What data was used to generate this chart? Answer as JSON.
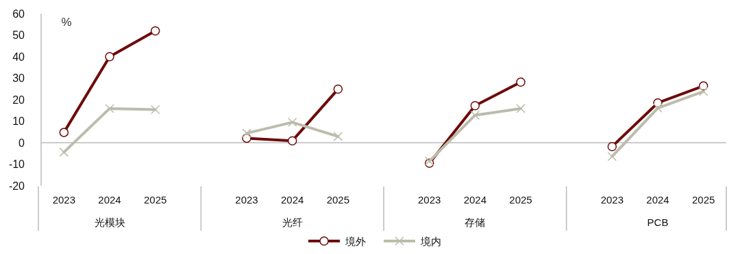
{
  "chart_data": {
    "type": "line",
    "ylabel": "%",
    "categories": [
      "2023",
      "2024",
      "2025",
      null,
      "2023",
      "2024",
      "2025",
      null,
      "2023",
      "2024",
      "2025",
      null,
      "2023",
      "2024",
      "2025"
    ],
    "annotations": [
      "光模块",
      "光纤",
      "存储",
      "PCB"
    ],
    "series": [
      {
        "name": "境外",
        "color": "#6e0a0a",
        "marker": "circle",
        "values": [
          4.8,
          40.0,
          52.0,
          null,
          2.1,
          0.9,
          24.9,
          null,
          -9.5,
          17.2,
          28.2,
          null,
          -1.8,
          18.5,
          26.4
        ]
      },
      {
        "name": "境内",
        "color": "#bcbcac",
        "marker": "cross",
        "values": [
          -4.4,
          15.9,
          15.4,
          null,
          4.4,
          9.5,
          2.9,
          null,
          -8.6,
          12.8,
          15.9,
          null,
          -6.4,
          16.1,
          23.8
        ]
      }
    ],
    "ylim": [
      -20,
      60
    ],
    "yticks": [
      -20,
      -10,
      0,
      10,
      20,
      30,
      40,
      50,
      60
    ],
    "ref_lines": [
      {
        "axis": "y",
        "value": 0,
        "color": "#bbbbbb"
      }
    ],
    "legend": "bottom"
  }
}
